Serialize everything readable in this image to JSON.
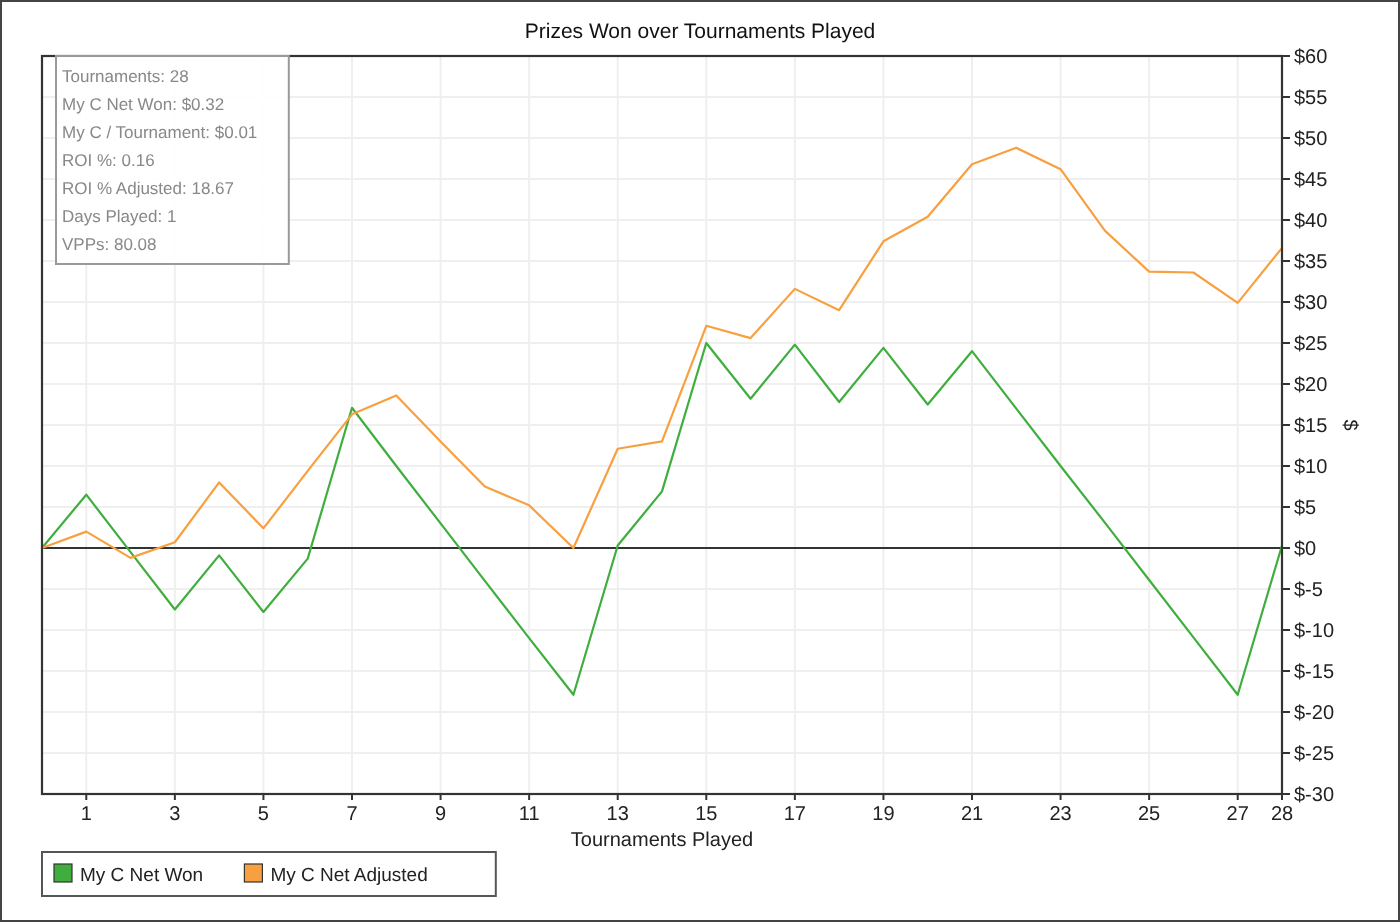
{
  "chart_data": {
    "type": "line",
    "title": "Prizes Won over Tournaments Played",
    "xlabel": "Tournaments Played",
    "ylabel": "$",
    "x": [
      0,
      1,
      2,
      3,
      4,
      5,
      6,
      7,
      8,
      9,
      10,
      11,
      12,
      13,
      14,
      15,
      16,
      17,
      18,
      19,
      20,
      21,
      22,
      23,
      24,
      25,
      26,
      27,
      28
    ],
    "series": [
      {
        "name": "My C Net Won",
        "color": "#3fae3f",
        "values": [
          0,
          6.5,
          -0.5,
          -7.5,
          -0.9,
          -7.8,
          -1.3,
          17.1,
          10,
          3,
          -4,
          -11,
          -17.9,
          0.3,
          6.9,
          25.0,
          18.2,
          24.8,
          17.8,
          24.4,
          17.5,
          24.0,
          17.0,
          10.0,
          3.1,
          -3.9,
          -10.9,
          -17.9,
          0.3
        ]
      },
      {
        "name": "My C Net Adjusted",
        "color": "#f8a040",
        "values": [
          0,
          2.0,
          -1.2,
          0.7,
          8.0,
          2.4,
          9.4,
          16.3,
          18.6,
          13.0,
          7.5,
          5.2,
          0,
          12.1,
          13.0,
          27.1,
          25.6,
          31.6,
          29.0,
          37.4,
          40.4,
          46.8,
          48.8,
          46.2,
          38.7,
          33.7,
          33.6,
          29.9,
          36.6
        ]
      }
    ],
    "xlim": [
      0,
      28
    ],
    "xticks": [
      1,
      3,
      5,
      7,
      9,
      11,
      13,
      15,
      17,
      19,
      21,
      23,
      25,
      27,
      28
    ],
    "ylim": [
      -30,
      60
    ],
    "yticks": [
      {
        "value": -30,
        "label": "$-30"
      },
      {
        "value": -25,
        "label": "$-25"
      },
      {
        "value": -20,
        "label": "$-20"
      },
      {
        "value": -15,
        "label": "$-15"
      },
      {
        "value": -10,
        "label": "$-10"
      },
      {
        "value": -5,
        "label": "$-5"
      },
      {
        "value": 0,
        "label": "$0"
      },
      {
        "value": 5,
        "label": "$5"
      },
      {
        "value": 10,
        "label": "$10"
      },
      {
        "value": 15,
        "label": "$15"
      },
      {
        "value": 20,
        "label": "$20"
      },
      {
        "value": 25,
        "label": "$25"
      },
      {
        "value": 30,
        "label": "$30"
      },
      {
        "value": 35,
        "label": "$35"
      },
      {
        "value": 40,
        "label": "$40"
      },
      {
        "value": 45,
        "label": "$45"
      },
      {
        "value": 50,
        "label": "$50"
      },
      {
        "value": 55,
        "label": "$55"
      },
      {
        "value": 60,
        "label": "$60"
      }
    ],
    "grid": true,
    "legend": "bottom left",
    "ref_lines": [
      {
        "axis": "y",
        "value": 0,
        "color": "#333333"
      }
    ],
    "annotations": [
      "Tournaments: 28",
      "My C Net Won: $0.32",
      "My C / Tournament: $0.01",
      "ROI %: 0.16",
      "ROI % Adjusted: 18.67",
      "Days Played: 1",
      "VPPs: 80.08"
    ]
  }
}
